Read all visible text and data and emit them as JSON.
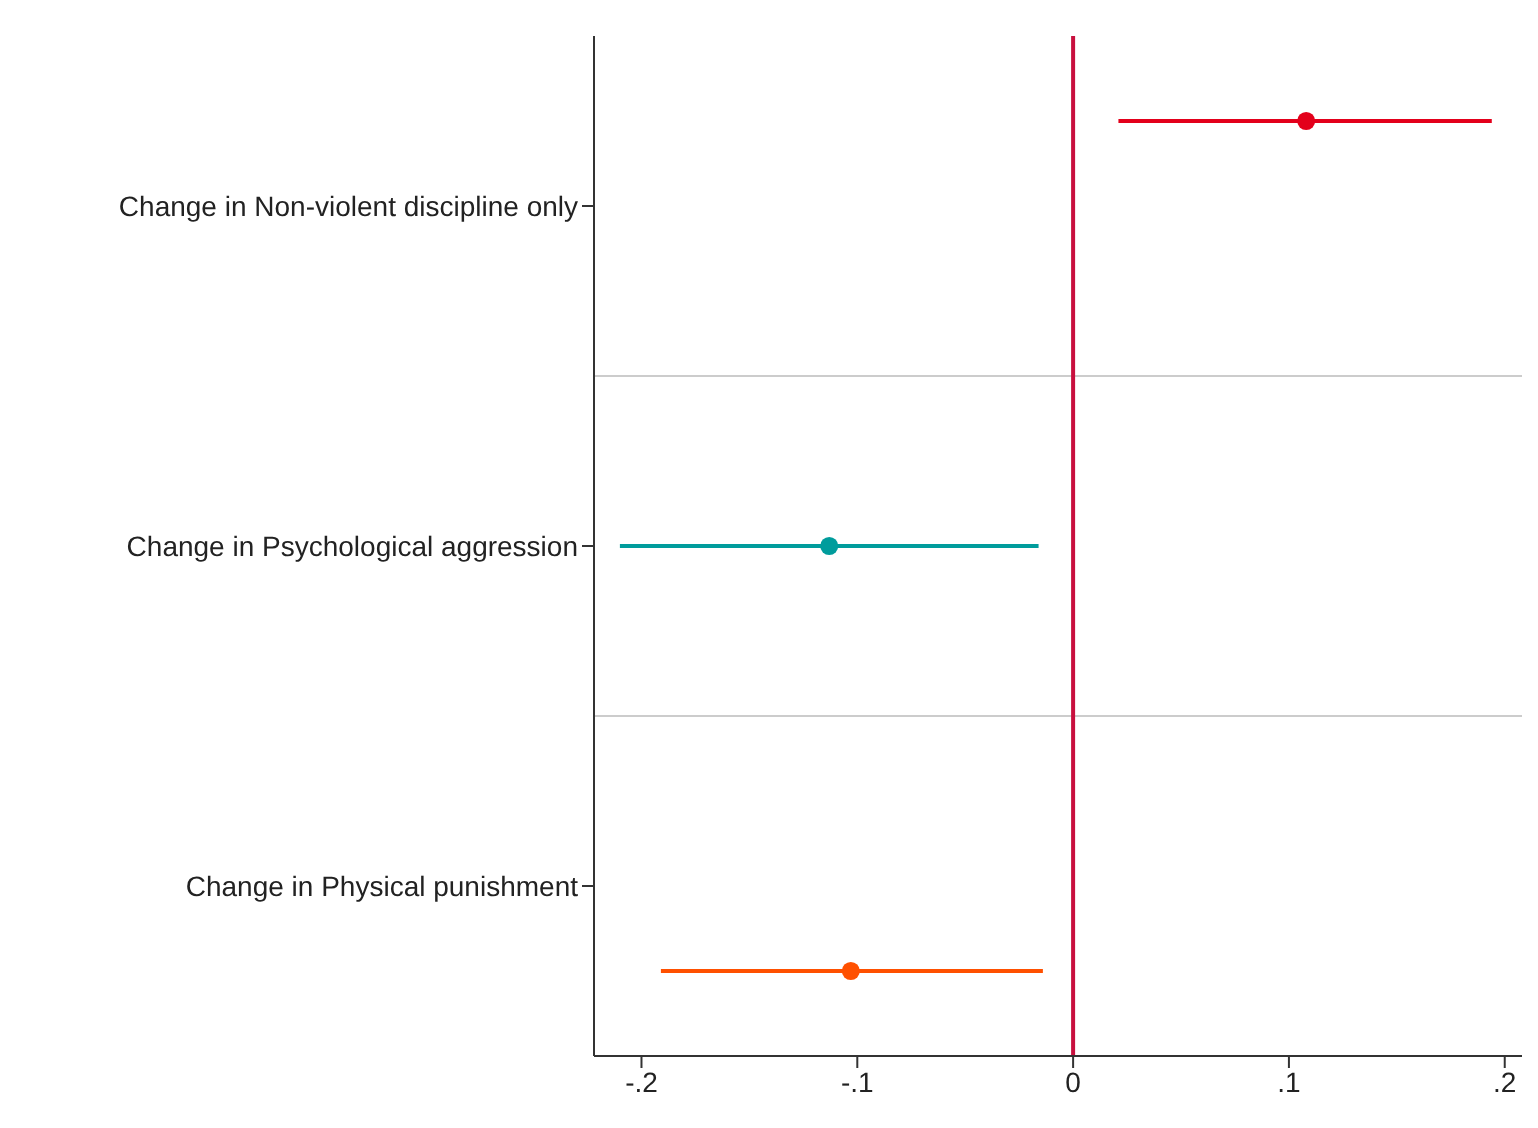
{
  "chart_data": {
    "type": "scatter",
    "orientation": "horizontal",
    "categories": [
      "Change in Non-violent discipline only",
      "Change in Psychological aggression",
      "Change in Physical punishment"
    ],
    "values": [
      0.108,
      -0.113,
      -0.103
    ],
    "colors": [
      "#e3001b",
      "#009c9c",
      "#ff5000"
    ],
    "errors": [
      [
        0.021,
        0.194
      ],
      [
        -0.21,
        -0.016
      ],
      [
        -0.191,
        -0.014
      ]
    ],
    "xlim": [
      -0.222,
      0.208
    ],
    "xticks": [
      {
        "value": -0.2,
        "label": "-.2"
      },
      {
        "value": -0.1,
        "label": "-.1"
      },
      0,
      {
        "value": 0.1,
        "label": ".1"
      },
      {
        "value": 0.2,
        "label": ".2"
      }
    ],
    "ref_lines": [
      {
        "axis": "x",
        "value": 0,
        "color": "#c8103e"
      }
    ],
    "marker": "circle",
    "grid": false,
    "legend": false
  }
}
